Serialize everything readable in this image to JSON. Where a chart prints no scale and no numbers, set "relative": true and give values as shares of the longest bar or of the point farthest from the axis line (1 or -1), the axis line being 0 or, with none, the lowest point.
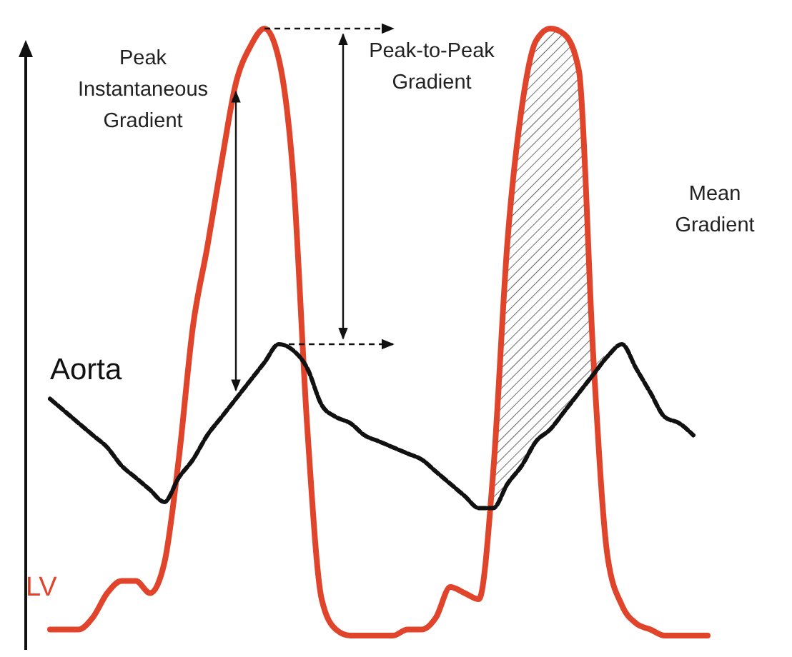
{
  "chart_data": {
    "type": "line",
    "relative": true,
    "categories": [
      null,
      null,
      null,
      null,
      null,
      null,
      null,
      null,
      null,
      null,
      null,
      null,
      null,
      null,
      null,
      null,
      null,
      null,
      null,
      null,
      null,
      null,
      null,
      null,
      null,
      null,
      null,
      null,
      null,
      null,
      null,
      null,
      null,
      null,
      null,
      null,
      null,
      null,
      null,
      null,
      null,
      null,
      null,
      null,
      null,
      null,
      null
    ],
    "series": [
      {
        "name": "LV",
        "color": "#e0452b",
        "line_style": "solid",
        "values": [
          0.01,
          0.01,
          0.01,
          0.03,
          0.07,
          0.09,
          0.09,
          0.07,
          0.12,
          0.29,
          0.51,
          0.64,
          0.78,
          0.91,
          0.97,
          1,
          0.95,
          0.76,
          0.34,
          0.06,
          0.01,
          0,
          0,
          0,
          0,
          0.01,
          0.01,
          0.03,
          0.08,
          0.07,
          0.06,
          0.27,
          0.65,
          0.87,
          0.98,
          1,
          0.99,
          0.93,
          0.46,
          0.13,
          0.05,
          0.02,
          0.01,
          0,
          0,
          0,
          0
        ],
        "lower": [
          null,
          null,
          null,
          null,
          null,
          null,
          null,
          null,
          null,
          null,
          null,
          null,
          null,
          null,
          null,
          null,
          null,
          null,
          null,
          null,
          null,
          null,
          null,
          null,
          null,
          null,
          null,
          null,
          null,
          null,
          null,
          0.22,
          0.25,
          0.28,
          0.32,
          0.34,
          0.37,
          0.4,
          0.43,
          0.46,
          0.48,
          null,
          null,
          null,
          null,
          null,
          null
        ],
        "upper": [
          null,
          null,
          null,
          null,
          null,
          null,
          null,
          null,
          null,
          null,
          null,
          null,
          null,
          null,
          null,
          null,
          null,
          null,
          null,
          null,
          null,
          null,
          null,
          null,
          null,
          null,
          null,
          null,
          null,
          null,
          null,
          0.27,
          0.65,
          0.87,
          0.98,
          1,
          0.99,
          0.93,
          0.46,
          0.46,
          0.48,
          null,
          null,
          null,
          null,
          null,
          null
        ]
      },
      {
        "name": "Aorta",
        "color": "#111111",
        "line_style": "dashed",
        "values": [
          0.39,
          0.37,
          0.35,
          0.33,
          0.31,
          0.28,
          0.26,
          0.24,
          0.22,
          0.26,
          0.29,
          0.33,
          0.36,
          0.39,
          0.42,
          0.45,
          0.48,
          0.47,
          0.44,
          0.38,
          0.36,
          0.35,
          0.33,
          0.32,
          0.31,
          0.3,
          0.29,
          0.27,
          0.25,
          0.23,
          0.21,
          0.21,
          0.25,
          0.28,
          0.32,
          0.34,
          0.37,
          0.4,
          0.43,
          0.46,
          0.48,
          0.44,
          0.4,
          0.36,
          0.35,
          0.33,
          null
        ]
      }
    ],
    "annotations": [
      "Peak Instantaneous Gradient",
      "Peak-to-Peak Gradient",
      "Mean Gradient"
    ]
  }
}
